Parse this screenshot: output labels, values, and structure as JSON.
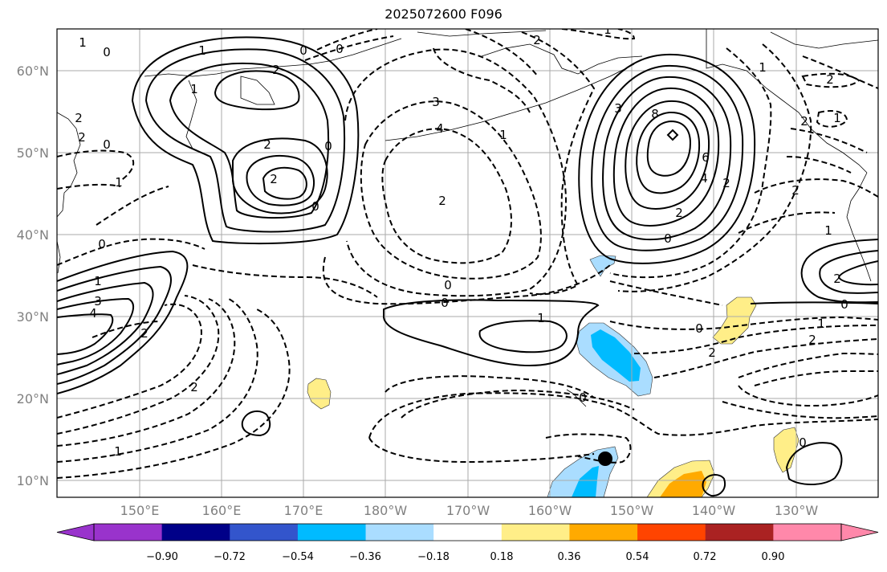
{
  "title": "2025072600 F096",
  "map": {
    "lat_labels": [
      "60°N",
      "50°N",
      "40°N",
      "30°N",
      "20°N",
      "10°N"
    ],
    "lon_labels": [
      "150°E",
      "160°E",
      "170°E",
      "180°W",
      "170°W",
      "160°W",
      "150°W",
      "140°W",
      "130°W"
    ],
    "contour_labels": [
      "1",
      "0",
      "0",
      "0",
      "1",
      "2",
      "1",
      "2",
      "0",
      "1",
      "2",
      "3",
      "4",
      "1",
      "2",
      "0",
      "2",
      "0",
      "2",
      "3",
      "8",
      "6",
      "4",
      "2",
      "0",
      "1",
      "2",
      "2",
      "1",
      "2",
      "2",
      "0",
      "0",
      "1",
      "0",
      "2",
      "2",
      "1",
      "1",
      "2",
      "0",
      "3",
      "4",
      "2",
      "1",
      "2",
      "2",
      "1",
      "0",
      "2",
      "0",
      "1",
      "0"
    ]
  },
  "colorbar": {
    "colors": [
      "#9933cc",
      "#000088",
      "#3355cc",
      "#00bbff",
      "#aaddff",
      "#ffffff",
      "#ffee88",
      "#ffaa00",
      "#ff4400",
      "#aa2222",
      "#ff88aa"
    ],
    "ticks": [
      "−0.90",
      "−0.72",
      "−0.54",
      "−0.36",
      "−0.18",
      "0.18",
      "0.36",
      "0.54",
      "0.72",
      "0.90"
    ]
  }
}
